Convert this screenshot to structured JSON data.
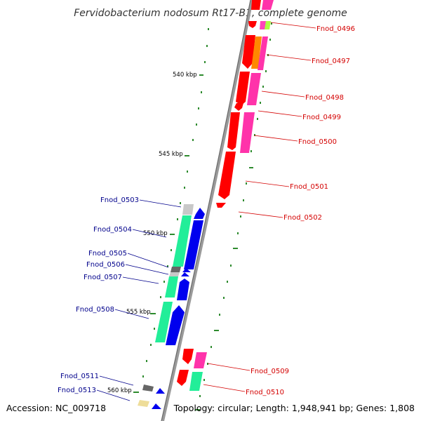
{
  "title": "Fervidobacterium nodosum Rt17-B1, complete genome",
  "footer": {
    "accession": "Accession: NC_009718",
    "summary": "Topology: circular; Length: 1,948,941 bp; Genes: 1,808"
  },
  "scale_labels": [
    "540 kbp",
    "545 kbp",
    "550 kbp",
    "555 kbp",
    "560 kbp"
  ],
  "colors": {
    "forward_label": "#d40000",
    "reverse_label": "#00008b",
    "backbone": "#888888"
  },
  "genes_right": [
    {
      "label": "Fnod_0496"
    },
    {
      "label": "Fnod_0497"
    },
    {
      "label": "Fnod_0498"
    },
    {
      "label": "Fnod_0499"
    },
    {
      "label": "Fnod_0500"
    },
    {
      "label": "Fnod_0501"
    },
    {
      "label": "Fnod_0502"
    },
    {
      "label": "Fnod_0509"
    },
    {
      "label": "Fnod_0510"
    }
  ],
  "genes_left": [
    {
      "label": "Fnod_0503"
    },
    {
      "label": "Fnod_0504"
    },
    {
      "label": "Fnod_0505"
    },
    {
      "label": "Fnod_0506"
    },
    {
      "label": "Fnod_0507"
    },
    {
      "label": "Fnod_0508"
    },
    {
      "label": "Fnod_0511"
    },
    {
      "label": "Fnod_0513"
    }
  ]
}
